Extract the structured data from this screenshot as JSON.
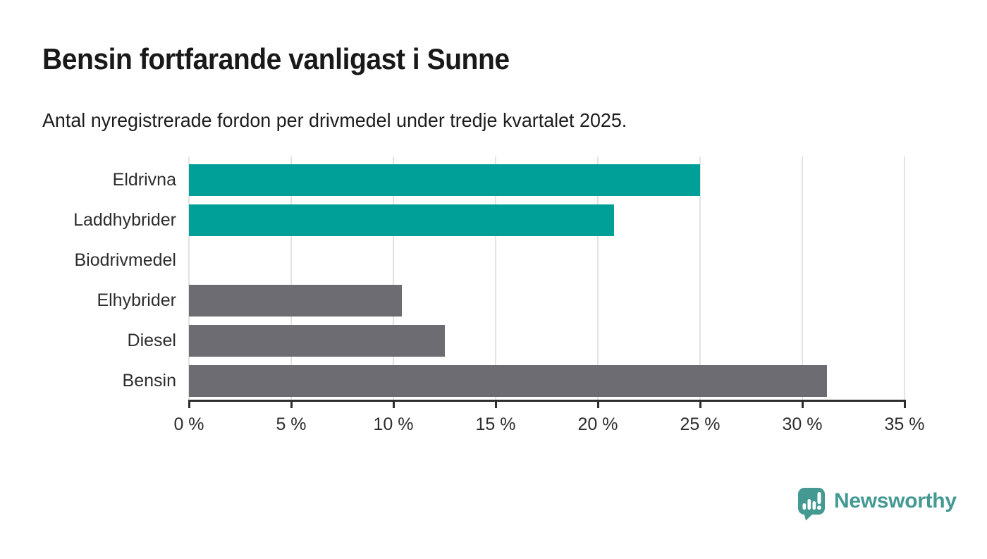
{
  "header": {
    "title": "Bensin fortfarande vanligast i Sunne",
    "subtitle": "Antal nyregistrerade fordon per drivmedel under tredje kvartalet 2025."
  },
  "chart_data": {
    "type": "bar",
    "orientation": "horizontal",
    "title": "Bensin fortfarande vanligast i Sunne",
    "subtitle": "Antal nyregistrerade fordon per drivmedel under tredje kvartalet 2025.",
    "categories": [
      "Eldrivna",
      "Laddhybrider",
      "Biodrivmedel",
      "Elhybrider",
      "Diesel",
      "Bensin"
    ],
    "values": [
      25.0,
      20.8,
      0,
      10.4,
      12.5,
      31.2
    ],
    "value_unit": "%",
    "bar_colors": [
      "#00a099",
      "#00a099",
      "#6c6c72",
      "#6c6c72",
      "#6c6c72",
      "#6c6c72"
    ],
    "accent_color": "#00a099",
    "default_bar_color": "#6c6c72",
    "xlim": [
      0,
      35
    ],
    "x_ticks": [
      0,
      5,
      10,
      15,
      20,
      25,
      30,
      35
    ],
    "x_tick_labels": [
      "0 %",
      "5 %",
      "10 %",
      "15 %",
      "20 %",
      "25 %",
      "30 %",
      "35 %"
    ],
    "grid": "vertical",
    "gridline_color": "#e3e3e3",
    "axis_color": "#2d2d2d",
    "legend": "none"
  },
  "branding": {
    "logo_text": "Newsworthy",
    "logo_color": "#449993",
    "logo_icon": "speech-bubble-with-bar-chart-and-exclamation"
  }
}
